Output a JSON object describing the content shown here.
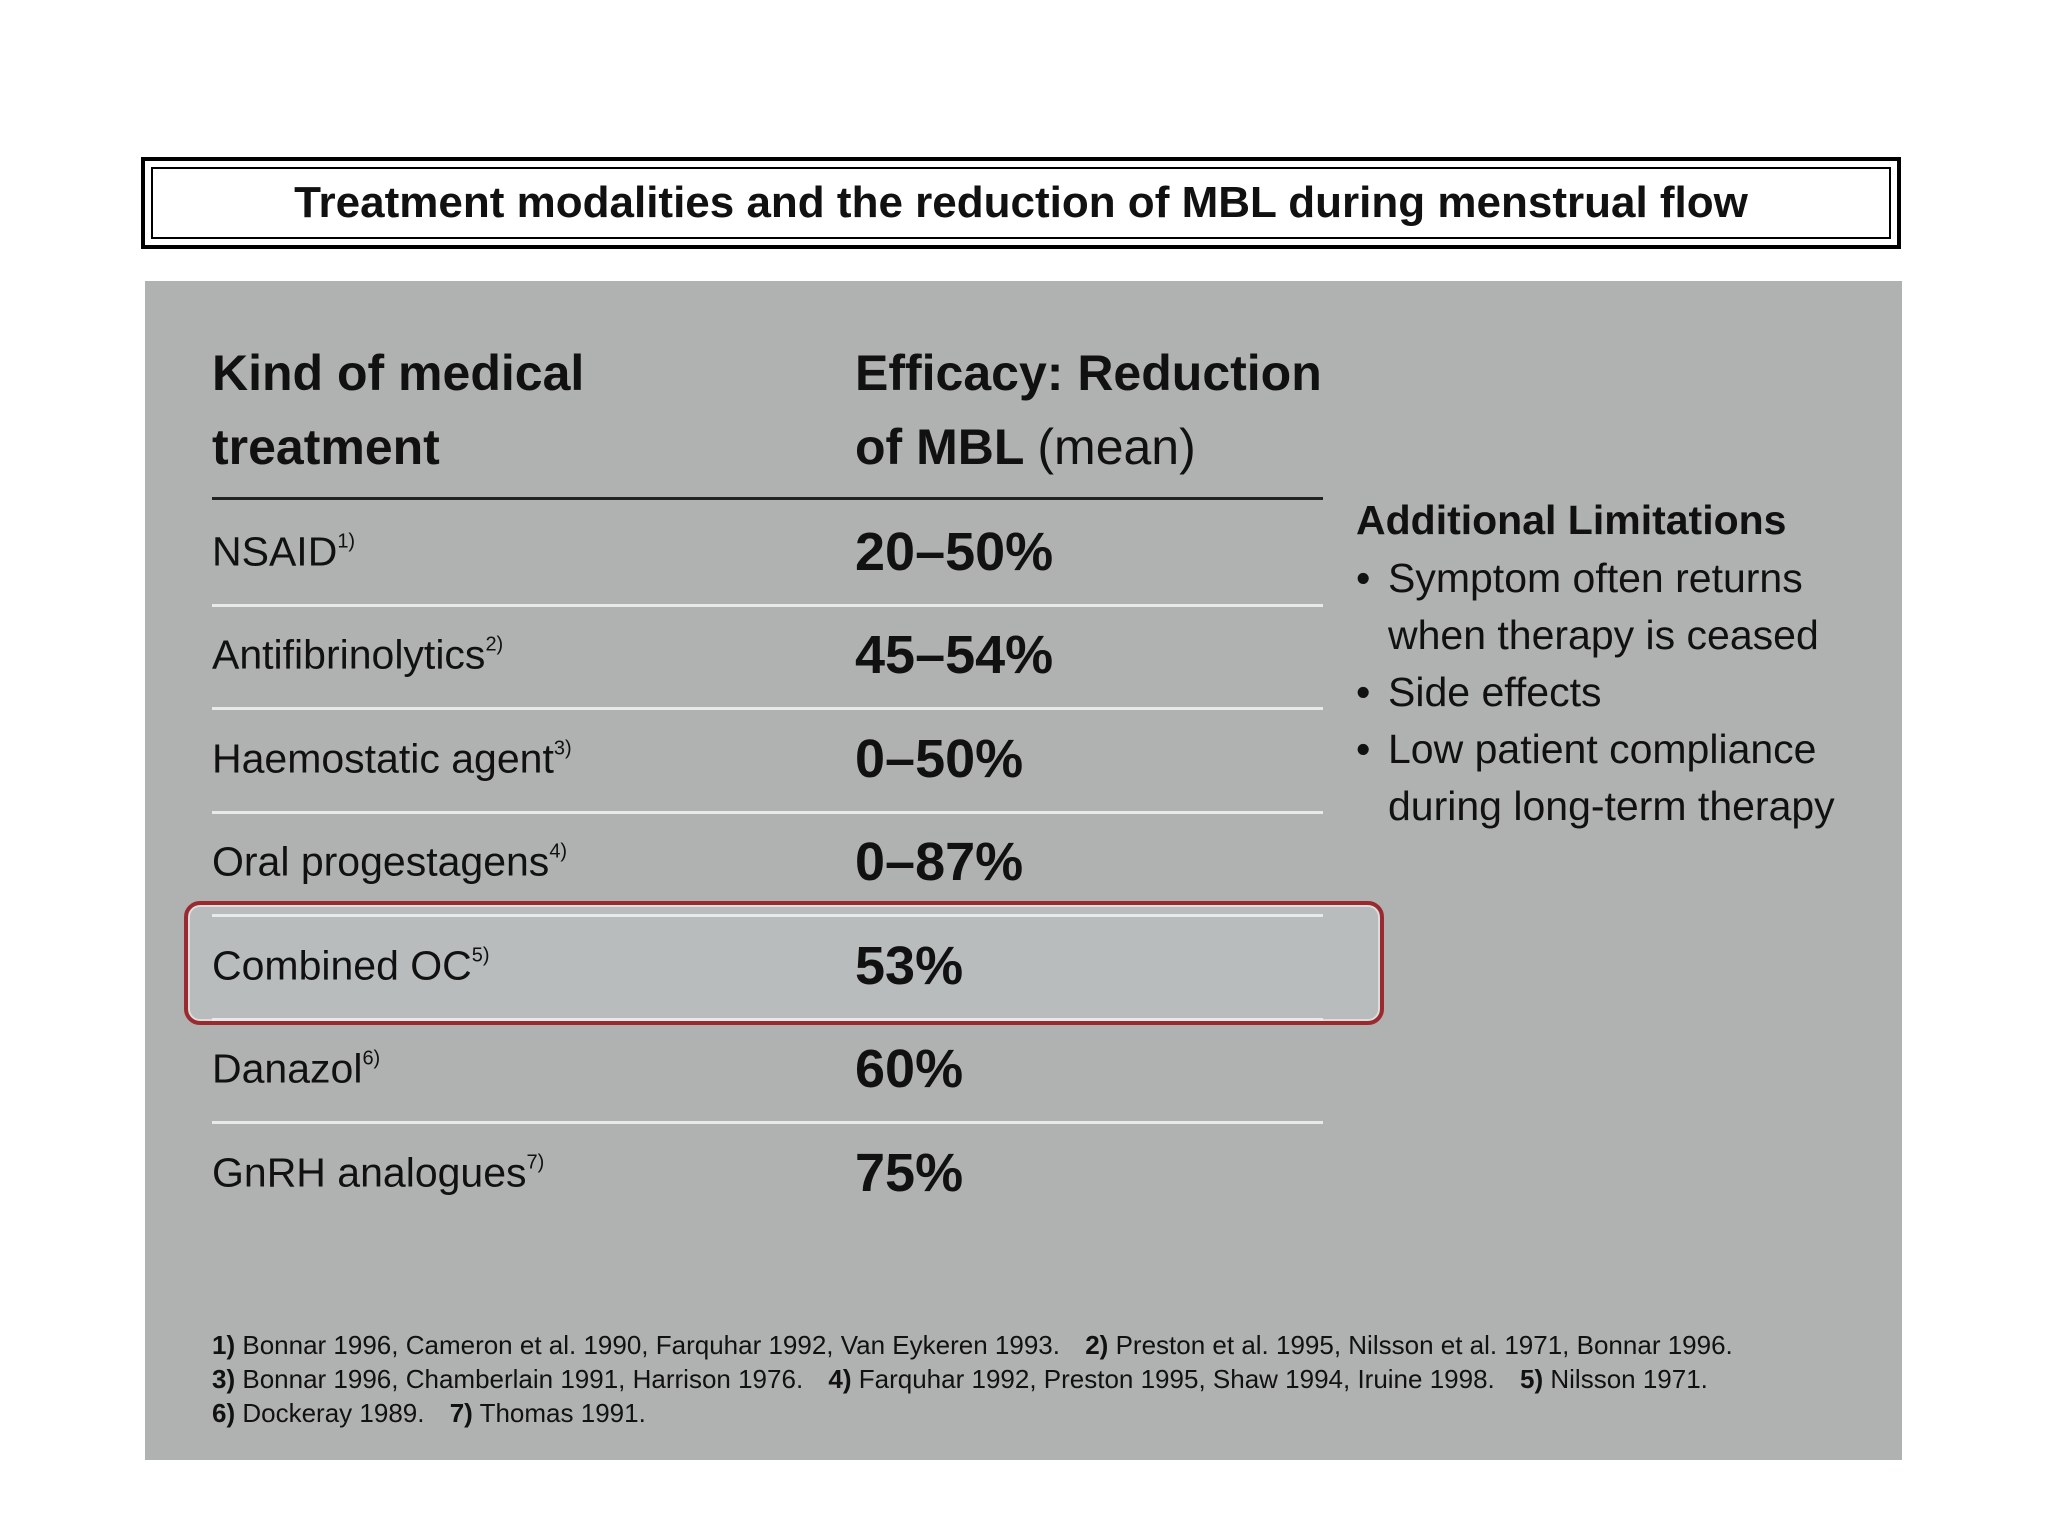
{
  "title": "Treatment modalities and the reduction of MBL during menstrual flow",
  "table": {
    "headers": [
      {
        "bold": "Kind of medical treatment"
      },
      {
        "bold": "Efficacy: Reduction of MBL",
        "normal": "(mean)"
      }
    ],
    "rows": [
      {
        "treatment": "NSAID",
        "ref": "1)",
        "efficacy": "20–50%"
      },
      {
        "treatment": "Antifibrinolytics",
        "ref": "2)",
        "efficacy": "45–54%"
      },
      {
        "treatment": "Haemostatic agent",
        "ref": "3)",
        "efficacy": "0–50%"
      },
      {
        "treatment": "Oral progestagens",
        "ref": "4)",
        "efficacy": "0–87%"
      },
      {
        "treatment": "Combined OC",
        "ref": "5)",
        "efficacy": "53%"
      },
      {
        "treatment": "Danazol",
        "ref": "6)",
        "efficacy": "60%"
      },
      {
        "treatment": "GnRH analogues",
        "ref": "7)",
        "efficacy": "75%"
      }
    ]
  },
  "limitations": {
    "heading": "Additional Limitations",
    "bullets": [
      "Symptom often returns when therapy is ceased",
      "Side effects",
      "Low patient compliance during long-term therapy"
    ]
  },
  "footnotes": [
    {
      "num": "1)",
      "text": "Bonnar 1996, Cameron et al. 1990, Farquhar 1992, Van Eykeren 1993."
    },
    {
      "num": "2)",
      "text": "Preston et al. 1995, Nilsson et al. 1971, Bonnar 1996."
    },
    {
      "num": "3)",
      "text": "Bonnar 1996, Chamberlain 1991, Harrison 1976."
    },
    {
      "num": "4)",
      "text": "Farquhar 1992, Preston 1995, Shaw 1994, Iruine 1998."
    },
    {
      "num": "5)",
      "text": "Nilsson 1971."
    },
    {
      "num": "6)",
      "text": "Dockeray 1989."
    },
    {
      "num": "7)",
      "text": "Thomas 1991."
    }
  ]
}
